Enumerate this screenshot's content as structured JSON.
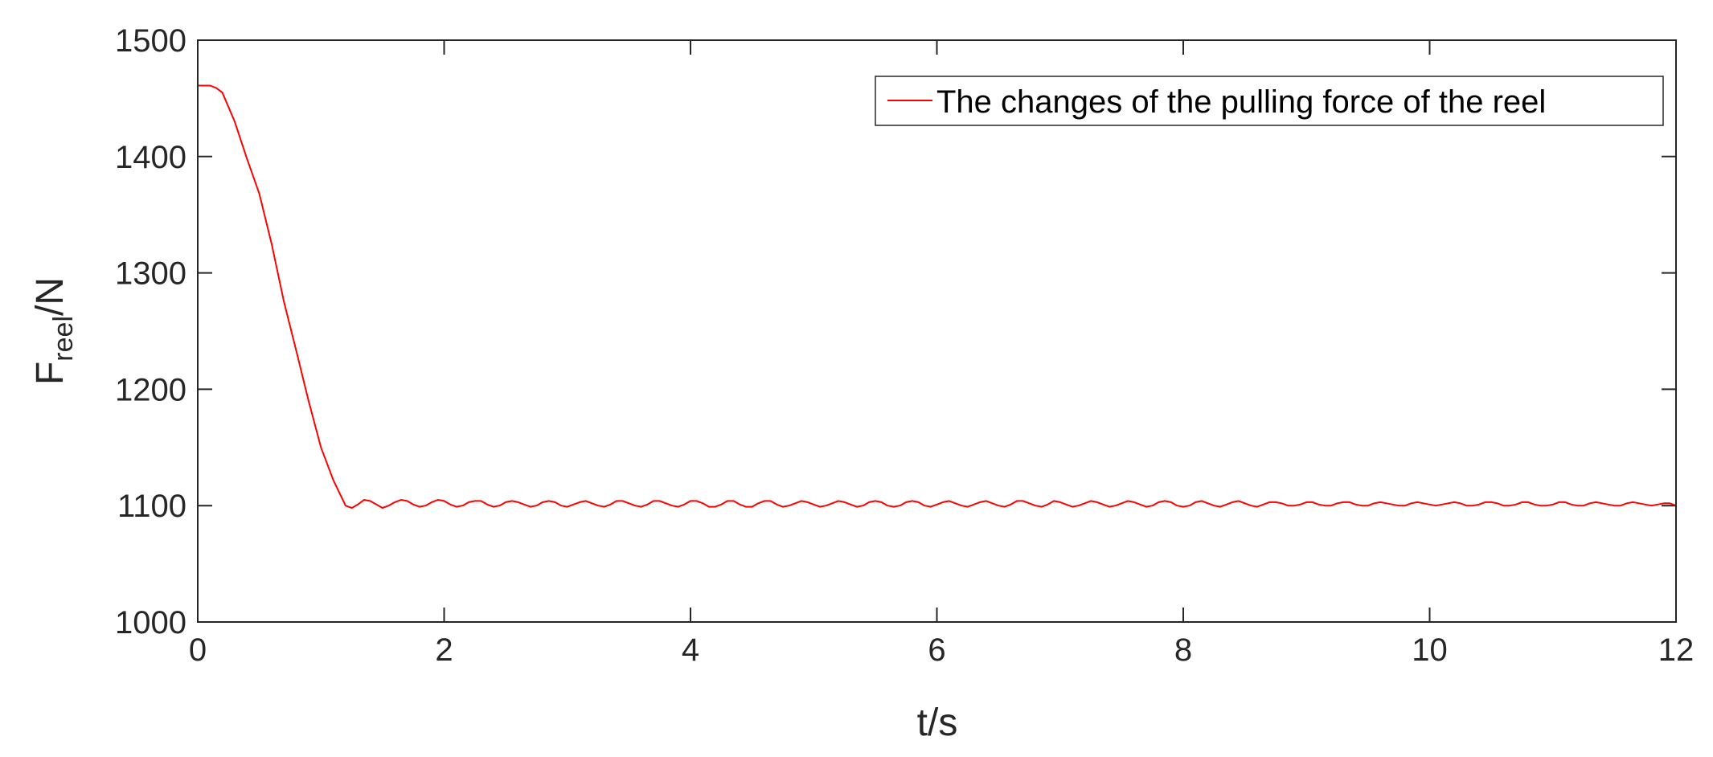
{
  "chart_data": {
    "type": "line",
    "xlabel": "t/s",
    "ylabel": {
      "main": "F",
      "subscript": "reel",
      "suffix": "/N"
    },
    "xlim": [
      0,
      12
    ],
    "ylim": [
      1000,
      1500
    ],
    "xticks": [
      0,
      2,
      4,
      6,
      8,
      10,
      12
    ],
    "yticks": [
      1000,
      1100,
      1200,
      1300,
      1400,
      1500
    ],
    "grid": false,
    "legend_position": "top-right",
    "series": [
      {
        "name": "The changes of the pulling force of the reel",
        "color": "#ff0000",
        "points": [
          [
            0,
            1461
          ],
          [
            0.1,
            1461
          ],
          [
            0.15,
            1459
          ],
          [
            0.2,
            1455
          ],
          [
            0.3,
            1430
          ],
          [
            0.4,
            1398
          ],
          [
            0.5,
            1368
          ],
          [
            0.6,
            1325
          ],
          [
            0.7,
            1275
          ],
          [
            0.8,
            1233
          ],
          [
            0.9,
            1190
          ],
          [
            1.0,
            1150
          ],
          [
            1.1,
            1122
          ],
          [
            1.2,
            1100
          ],
          [
            1.25,
            1098
          ],
          [
            1.3,
            1101
          ],
          [
            1.35,
            1105
          ],
          [
            1.4,
            1104
          ],
          [
            1.45,
            1101
          ],
          [
            1.5,
            1098
          ],
          [
            1.55,
            1100
          ],
          [
            1.6,
            1103
          ],
          [
            1.65,
            1105
          ],
          [
            1.7,
            1104
          ],
          [
            1.75,
            1101
          ],
          [
            1.8,
            1099
          ],
          [
            1.85,
            1100
          ],
          [
            1.9,
            1103
          ],
          [
            1.95,
            1105
          ],
          [
            2.0,
            1104
          ],
          [
            2.05,
            1101
          ],
          [
            2.1,
            1099
          ],
          [
            2.15,
            1100
          ],
          [
            2.2,
            1103
          ],
          [
            2.25,
            1104
          ],
          [
            2.3,
            1104
          ],
          [
            2.35,
            1101
          ],
          [
            2.4,
            1099
          ],
          [
            2.45,
            1100
          ],
          [
            2.5,
            1103
          ],
          [
            2.55,
            1104
          ],
          [
            2.6,
            1103
          ],
          [
            2.65,
            1101
          ],
          [
            2.7,
            1099
          ],
          [
            2.75,
            1100
          ],
          [
            2.8,
            1103
          ],
          [
            2.85,
            1104
          ],
          [
            2.9,
            1103
          ],
          [
            2.95,
            1100
          ],
          [
            3.0,
            1099
          ],
          [
            3.05,
            1101
          ],
          [
            3.1,
            1103
          ],
          [
            3.15,
            1104
          ],
          [
            3.2,
            1102
          ],
          [
            3.25,
            1100
          ],
          [
            3.3,
            1099
          ],
          [
            3.35,
            1101
          ],
          [
            3.4,
            1104
          ],
          [
            3.45,
            1104
          ],
          [
            3.5,
            1102
          ],
          [
            3.55,
            1100
          ],
          [
            3.6,
            1099
          ],
          [
            3.65,
            1101
          ],
          [
            3.7,
            1104
          ],
          [
            3.75,
            1104
          ],
          [
            3.8,
            1102
          ],
          [
            3.85,
            1100
          ],
          [
            3.9,
            1099
          ],
          [
            3.95,
            1101
          ],
          [
            4.0,
            1104
          ],
          [
            4.05,
            1104
          ],
          [
            4.1,
            1102
          ],
          [
            4.15,
            1099
          ],
          [
            4.2,
            1099
          ],
          [
            4.25,
            1101
          ],
          [
            4.3,
            1104
          ],
          [
            4.35,
            1104
          ],
          [
            4.4,
            1101
          ],
          [
            4.45,
            1099
          ],
          [
            4.5,
            1099
          ],
          [
            4.55,
            1102
          ],
          [
            4.6,
            1104
          ],
          [
            4.65,
            1104
          ],
          [
            4.7,
            1101
          ],
          [
            4.75,
            1099
          ],
          [
            4.8,
            1100
          ],
          [
            4.85,
            1102
          ],
          [
            4.9,
            1104
          ],
          [
            4.95,
            1103
          ],
          [
            5.0,
            1101
          ],
          [
            5.05,
            1099
          ],
          [
            5.1,
            1100
          ],
          [
            5.15,
            1102
          ],
          [
            5.2,
            1104
          ],
          [
            5.25,
            1103
          ],
          [
            5.3,
            1101
          ],
          [
            5.35,
            1099
          ],
          [
            5.4,
            1100
          ],
          [
            5.45,
            1103
          ],
          [
            5.5,
            1104
          ],
          [
            5.55,
            1103
          ],
          [
            5.6,
            1100
          ],
          [
            5.65,
            1099
          ],
          [
            5.7,
            1100
          ],
          [
            5.75,
            1103
          ],
          [
            5.8,
            1104
          ],
          [
            5.85,
            1103
          ],
          [
            5.9,
            1100
          ],
          [
            5.95,
            1099
          ],
          [
            6.0,
            1101
          ],
          [
            6.05,
            1103
          ],
          [
            6.1,
            1104
          ],
          [
            6.15,
            1102
          ],
          [
            6.2,
            1100
          ],
          [
            6.25,
            1099
          ],
          [
            6.3,
            1101
          ],
          [
            6.35,
            1103
          ],
          [
            6.4,
            1104
          ],
          [
            6.45,
            1102
          ],
          [
            6.5,
            1100
          ],
          [
            6.55,
            1099
          ],
          [
            6.6,
            1101
          ],
          [
            6.65,
            1104
          ],
          [
            6.7,
            1104
          ],
          [
            6.75,
            1102
          ],
          [
            6.8,
            1100
          ],
          [
            6.85,
            1099
          ],
          [
            6.9,
            1101
          ],
          [
            6.95,
            1104
          ],
          [
            7.0,
            1103
          ],
          [
            7.05,
            1101
          ],
          [
            7.1,
            1099
          ],
          [
            7.15,
            1100
          ],
          [
            7.2,
            1102
          ],
          [
            7.25,
            1104
          ],
          [
            7.3,
            1103
          ],
          [
            7.35,
            1101
          ],
          [
            7.4,
            1099
          ],
          [
            7.45,
            1100
          ],
          [
            7.5,
            1102
          ],
          [
            7.55,
            1104
          ],
          [
            7.6,
            1103
          ],
          [
            7.65,
            1101
          ],
          [
            7.7,
            1099
          ],
          [
            7.75,
            1100
          ],
          [
            7.8,
            1103
          ],
          [
            7.85,
            1104
          ],
          [
            7.9,
            1103
          ],
          [
            7.95,
            1100
          ],
          [
            8.0,
            1099
          ],
          [
            8.05,
            1100
          ],
          [
            8.1,
            1103
          ],
          [
            8.15,
            1104
          ],
          [
            8.2,
            1102
          ],
          [
            8.25,
            1100
          ],
          [
            8.3,
            1099
          ],
          [
            8.35,
            1101
          ],
          [
            8.4,
            1103
          ],
          [
            8.45,
            1104
          ],
          [
            8.5,
            1102
          ],
          [
            8.55,
            1100
          ],
          [
            8.6,
            1099
          ],
          [
            8.65,
            1101
          ],
          [
            8.7,
            1103
          ],
          [
            8.75,
            1103
          ],
          [
            8.8,
            1102
          ],
          [
            8.85,
            1100
          ],
          [
            8.9,
            1100
          ],
          [
            8.95,
            1101
          ],
          [
            9.0,
            1103
          ],
          [
            9.05,
            1103
          ],
          [
            9.1,
            1101
          ],
          [
            9.15,
            1100
          ],
          [
            9.2,
            1100
          ],
          [
            9.25,
            1102
          ],
          [
            9.3,
            1103
          ],
          [
            9.35,
            1103
          ],
          [
            9.4,
            1101
          ],
          [
            9.45,
            1100
          ],
          [
            9.5,
            1100
          ],
          [
            9.55,
            1102
          ],
          [
            9.6,
            1103
          ],
          [
            9.65,
            1102
          ],
          [
            9.7,
            1101
          ],
          [
            9.75,
            1100
          ],
          [
            9.8,
            1100
          ],
          [
            9.85,
            1102
          ],
          [
            9.9,
            1103
          ],
          [
            9.95,
            1102
          ],
          [
            10.0,
            1101
          ],
          [
            10.05,
            1100
          ],
          [
            10.1,
            1101
          ],
          [
            10.15,
            1102
          ],
          [
            10.2,
            1103
          ],
          [
            10.25,
            1102
          ],
          [
            10.3,
            1100
          ],
          [
            10.35,
            1100
          ],
          [
            10.4,
            1101
          ],
          [
            10.45,
            1103
          ],
          [
            10.5,
            1103
          ],
          [
            10.55,
            1102
          ],
          [
            10.6,
            1100
          ],
          [
            10.65,
            1100
          ],
          [
            10.7,
            1101
          ],
          [
            10.75,
            1103
          ],
          [
            10.8,
            1103
          ],
          [
            10.85,
            1101
          ],
          [
            10.9,
            1100
          ],
          [
            10.95,
            1100
          ],
          [
            11.0,
            1101
          ],
          [
            11.05,
            1103
          ],
          [
            11.1,
            1103
          ],
          [
            11.15,
            1101
          ],
          [
            11.2,
            1100
          ],
          [
            11.25,
            1100
          ],
          [
            11.3,
            1102
          ],
          [
            11.35,
            1103
          ],
          [
            11.4,
            1102
          ],
          [
            11.45,
            1101
          ],
          [
            11.5,
            1100
          ],
          [
            11.55,
            1100
          ],
          [
            11.6,
            1102
          ],
          [
            11.65,
            1103
          ],
          [
            11.7,
            1102
          ],
          [
            11.75,
            1101
          ],
          [
            11.8,
            1100
          ],
          [
            11.85,
            1101
          ],
          [
            11.9,
            1102
          ],
          [
            11.95,
            1102
          ],
          [
            12.0,
            1100
          ]
        ]
      }
    ]
  }
}
